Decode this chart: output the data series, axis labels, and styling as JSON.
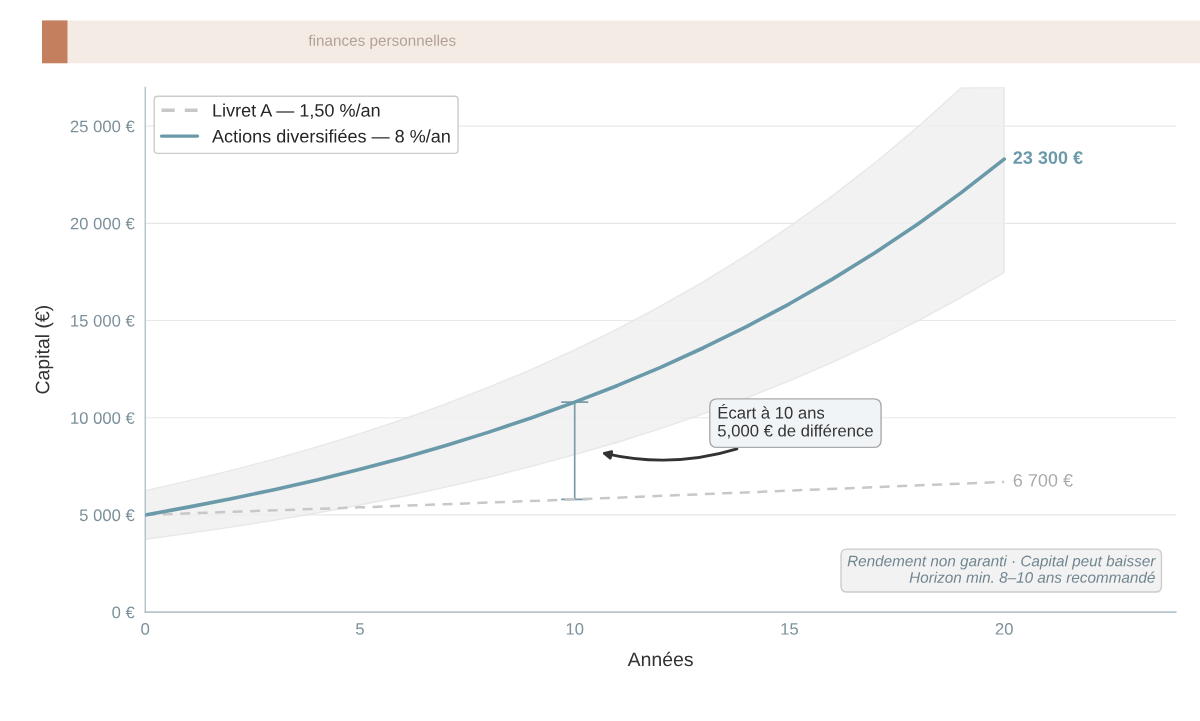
{
  "chart_data": {
    "type": "line",
    "xlabel": "Années",
    "ylabel": "Capital (€)",
    "x": [
      0,
      1,
      2,
      3,
      4,
      5,
      6,
      7,
      8,
      9,
      10,
      11,
      12,
      13,
      14,
      15,
      16,
      17,
      18,
      19,
      20
    ],
    "series": [
      {
        "name": "Livret A — 1,50 %/an",
        "color": "#c8c8c8",
        "line_style": "dashed",
        "x": [
          0,
          5,
          10,
          15,
          20
        ],
        "values": [
          5000,
          5390,
          5800,
          6250,
          6700
        ]
      },
      {
        "name": "Actions diversifiées — 8 %/an",
        "color": "#6a9aaa",
        "line_style": "solid",
        "values": [
          5000,
          5400,
          5830,
          6300,
          6800,
          7350,
          7930,
          8570,
          9260,
          10000,
          10800,
          11660,
          12590,
          13600,
          14690,
          15860,
          17130,
          18500,
          19980,
          21580,
          23300
        ],
        "lower": [
          3750,
          4050,
          4370,
          4720,
          5100,
          5510,
          5950,
          6430,
          6940,
          7500,
          8100,
          8740,
          9440,
          10200,
          11010,
          11900,
          12850,
          13880,
          14990,
          16190,
          17480
        ],
        "upper": [
          6250,
          6750,
          7290,
          7870,
          8500,
          9180,
          9920,
          10710,
          11570,
          12490,
          13490,
          14570,
          15740,
          17000,
          18360,
          19830,
          21410,
          23130,
          24980,
          26970,
          27000
        ]
      }
    ],
    "xlim": [
      0,
      24
    ],
    "xticks": [
      0,
      5,
      10,
      15,
      20
    ],
    "ylim": [
      0,
      27000
    ],
    "yticks": [
      {
        "value": 0,
        "label": "0 €"
      },
      {
        "value": 5000,
        "label": "5 000 €"
      },
      {
        "value": 10000,
        "label": "10 000 €"
      },
      {
        "value": 15000,
        "label": "15 000 €"
      },
      {
        "value": 20000,
        "label": "20 000 €"
      },
      {
        "value": 25000,
        "label": "25 000 €"
      }
    ],
    "grid": "y",
    "legend": "top left",
    "marker": "none",
    "annotations": [
      {
        "text": "23 300 €",
        "x": 20,
        "y": 23300
      },
      {
        "text": "6 700 €",
        "x": 20,
        "y": 6700
      },
      "Écart à 10 ans\n5,000 € de différence",
      "Rendement non garanti · Capital peut baisser\nHorizon min. 8–10 ans recommandé",
      "finances personnelles"
    ]
  }
}
